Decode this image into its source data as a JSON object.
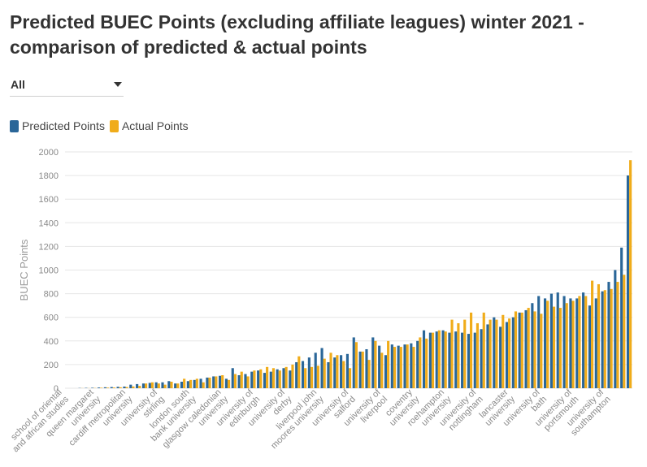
{
  "title": "Predicted BUEC Points (excluding affiliate leagues) winter 2021 - comparison of predicted & actual points",
  "filter": {
    "selected": "All"
  },
  "legend": {
    "predicted": "Predicted Points",
    "actual": "Actual Points"
  },
  "colors": {
    "predicted": "#2a6698",
    "actual": "#f0ac1a"
  },
  "chart_data": {
    "type": "bar",
    "ylabel": "BUEC Points",
    "ylim": [
      0,
      2000
    ],
    "yticks": [
      0,
      200,
      400,
      600,
      800,
      1000,
      1200,
      1400,
      1600,
      1800,
      2000
    ],
    "grid": true,
    "legend_position": "top-left",
    "x_tick_labels": [
      "school of oriental and african studies",
      "queen margaret university",
      "cardiff metropolitan university",
      "university of stirling",
      "london south bank university",
      "glasgow caledonian university",
      "university of edinburgh",
      "university of derby",
      "liverpool john moores university",
      "university of salford",
      "university of liverpool",
      "coventry university",
      "roehampton university",
      "university of nottingham",
      "lancaster university",
      "university of bath",
      "university of portsmouth",
      "university of southampton"
    ],
    "label_every": 5,
    "series": [
      {
        "name": "Predicted Points",
        "values": [
          0,
          0,
          2,
          3,
          4,
          6,
          8,
          10,
          12,
          14,
          30,
          35,
          40,
          45,
          50,
          50,
          60,
          40,
          55,
          60,
          70,
          80,
          90,
          100,
          105,
          80,
          170,
          110,
          120,
          140,
          150,
          130,
          140,
          160,
          170,
          150,
          220,
          230,
          260,
          300,
          340,
          220,
          260,
          280,
          290,
          430,
          310,
          330,
          430,
          360,
          280,
          370,
          360,
          370,
          380,
          400,
          490,
          470,
          480,
          490,
          470,
          480,
          470,
          460,
          470,
          500,
          540,
          600,
          520,
          560,
          600,
          640,
          660,
          720,
          780,
          760,
          800,
          810,
          780,
          760,
          760,
          810,
          700,
          760,
          820,
          900,
          1000,
          1190,
          1800
        ]
      },
      {
        "name": "Actual Points",
        "values": [
          0,
          0,
          1,
          1,
          2,
          4,
          5,
          6,
          8,
          10,
          15,
          20,
          40,
          50,
          40,
          30,
          55,
          40,
          80,
          70,
          80,
          50,
          90,
          100,
          110,
          70,
          120,
          140,
          100,
          150,
          160,
          180,
          170,
          150,
          180,
          200,
          270,
          170,
          180,
          190,
          250,
          300,
          280,
          230,
          170,
          390,
          310,
          240,
          400,
          300,
          400,
          350,
          350,
          370,
          350,
          430,
          420,
          470,
          490,
          480,
          580,
          550,
          580,
          640,
          550,
          640,
          580,
          580,
          620,
          590,
          650,
          640,
          680,
          650,
          630,
          740,
          690,
          680,
          720,
          740,
          780,
          780,
          910,
          880,
          830,
          840,
          900,
          960,
          1930
        ]
      }
    ]
  }
}
